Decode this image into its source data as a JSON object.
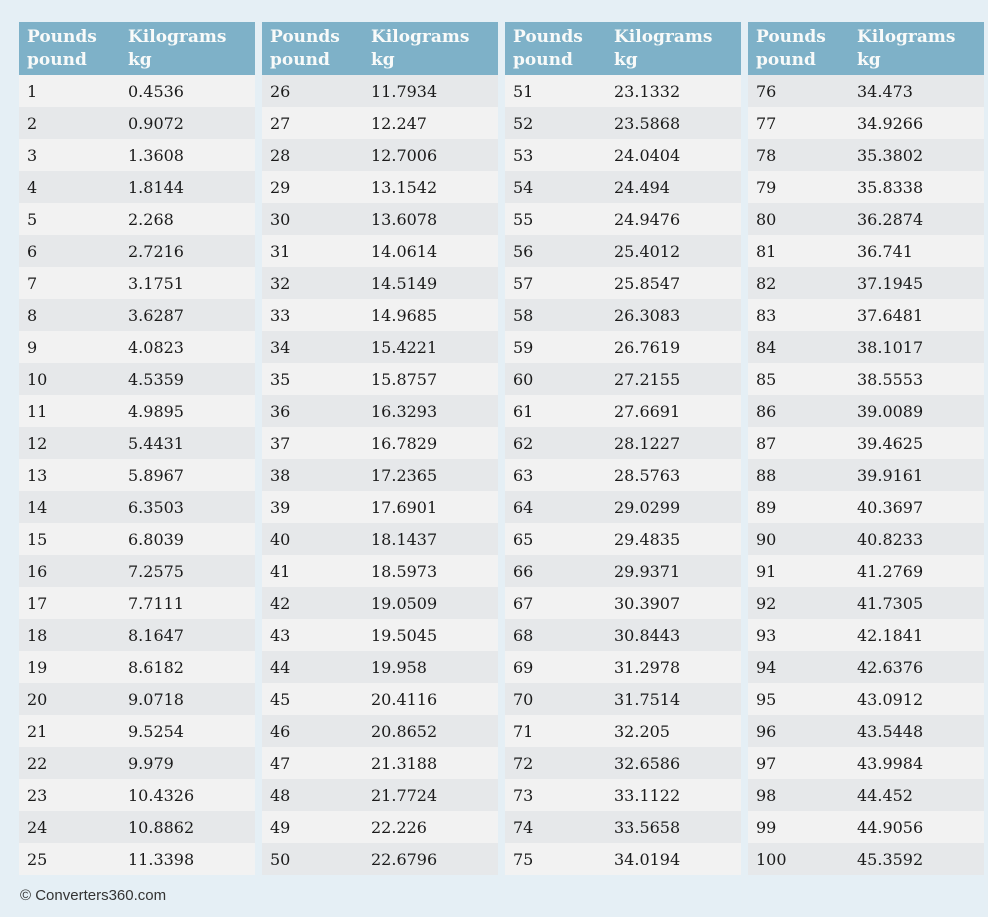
{
  "header": {
    "pounds_line1": "Pounds",
    "pounds_line2": "pound",
    "kilograms_line1": "Kilograms",
    "kilograms_line2": "kg"
  },
  "footer": {
    "text": "© Converters360.com"
  },
  "colors": {
    "page_bg": "#e5eff5",
    "header_bg": "#7eb1c8",
    "header_text": "#f8faf9",
    "row_odd": "#f2f2f2",
    "row_even": "#e6e8ea",
    "cell_text": "#1b1b1b",
    "footer_text": "#333333"
  },
  "chart_data": {
    "type": "table",
    "column_headers": [
      "Pounds pound",
      "Kilograms kg"
    ],
    "tables": [
      {
        "rows": [
          [
            "1",
            "0.4536"
          ],
          [
            "2",
            "0.9072"
          ],
          [
            "3",
            "1.3608"
          ],
          [
            "4",
            "1.8144"
          ],
          [
            "5",
            "2.268"
          ],
          [
            "6",
            "2.7216"
          ],
          [
            "7",
            "3.1751"
          ],
          [
            "8",
            "3.6287"
          ],
          [
            "9",
            "4.0823"
          ],
          [
            "10",
            "4.5359"
          ],
          [
            "11",
            "4.9895"
          ],
          [
            "12",
            "5.4431"
          ],
          [
            "13",
            "5.8967"
          ],
          [
            "14",
            "6.3503"
          ],
          [
            "15",
            "6.8039"
          ],
          [
            "16",
            "7.2575"
          ],
          [
            "17",
            "7.7111"
          ],
          [
            "18",
            "8.1647"
          ],
          [
            "19",
            "8.6182"
          ],
          [
            "20",
            "9.0718"
          ],
          [
            "21",
            "9.5254"
          ],
          [
            "22",
            "9.979"
          ],
          [
            "23",
            "10.4326"
          ],
          [
            "24",
            "10.8862"
          ],
          [
            "25",
            "11.3398"
          ]
        ]
      },
      {
        "rows": [
          [
            "26",
            "11.7934"
          ],
          [
            "27",
            "12.247"
          ],
          [
            "28",
            "12.7006"
          ],
          [
            "29",
            "13.1542"
          ],
          [
            "30",
            "13.6078"
          ],
          [
            "31",
            "14.0614"
          ],
          [
            "32",
            "14.5149"
          ],
          [
            "33",
            "14.9685"
          ],
          [
            "34",
            "15.4221"
          ],
          [
            "35",
            "15.8757"
          ],
          [
            "36",
            "16.3293"
          ],
          [
            "37",
            "16.7829"
          ],
          [
            "38",
            "17.2365"
          ],
          [
            "39",
            "17.6901"
          ],
          [
            "40",
            "18.1437"
          ],
          [
            "41",
            "18.5973"
          ],
          [
            "42",
            "19.0509"
          ],
          [
            "43",
            "19.5045"
          ],
          [
            "44",
            "19.958"
          ],
          [
            "45",
            "20.4116"
          ],
          [
            "46",
            "20.8652"
          ],
          [
            "47",
            "21.3188"
          ],
          [
            "48",
            "21.7724"
          ],
          [
            "49",
            "22.226"
          ],
          [
            "50",
            "22.6796"
          ]
        ]
      },
      {
        "rows": [
          [
            "51",
            "23.1332"
          ],
          [
            "52",
            "23.5868"
          ],
          [
            "53",
            "24.0404"
          ],
          [
            "54",
            "24.494"
          ],
          [
            "55",
            "24.9476"
          ],
          [
            "56",
            "25.4012"
          ],
          [
            "57",
            "25.8547"
          ],
          [
            "58",
            "26.3083"
          ],
          [
            "59",
            "26.7619"
          ],
          [
            "60",
            "27.2155"
          ],
          [
            "61",
            "27.6691"
          ],
          [
            "62",
            "28.1227"
          ],
          [
            "63",
            "28.5763"
          ],
          [
            "64",
            "29.0299"
          ],
          [
            "65",
            "29.4835"
          ],
          [
            "66",
            "29.9371"
          ],
          [
            "67",
            "30.3907"
          ],
          [
            "68",
            "30.8443"
          ],
          [
            "69",
            "31.2978"
          ],
          [
            "70",
            "31.7514"
          ],
          [
            "71",
            "32.205"
          ],
          [
            "72",
            "32.6586"
          ],
          [
            "73",
            "33.1122"
          ],
          [
            "74",
            "33.5658"
          ],
          [
            "75",
            "34.0194"
          ]
        ]
      },
      {
        "rows": [
          [
            "76",
            "34.473"
          ],
          [
            "77",
            "34.9266"
          ],
          [
            "78",
            "35.3802"
          ],
          [
            "79",
            "35.8338"
          ],
          [
            "80",
            "36.2874"
          ],
          [
            "81",
            "36.741"
          ],
          [
            "82",
            "37.1945"
          ],
          [
            "83",
            "37.6481"
          ],
          [
            "84",
            "38.1017"
          ],
          [
            "85",
            "38.5553"
          ],
          [
            "86",
            "39.0089"
          ],
          [
            "87",
            "39.4625"
          ],
          [
            "88",
            "39.9161"
          ],
          [
            "89",
            "40.3697"
          ],
          [
            "90",
            "40.8233"
          ],
          [
            "91",
            "41.2769"
          ],
          [
            "92",
            "41.7305"
          ],
          [
            "93",
            "42.1841"
          ],
          [
            "94",
            "42.6376"
          ],
          [
            "95",
            "43.0912"
          ],
          [
            "96",
            "43.5448"
          ],
          [
            "97",
            "43.9984"
          ],
          [
            "98",
            "44.452"
          ],
          [
            "99",
            "44.9056"
          ],
          [
            "100",
            "45.3592"
          ]
        ]
      }
    ]
  }
}
